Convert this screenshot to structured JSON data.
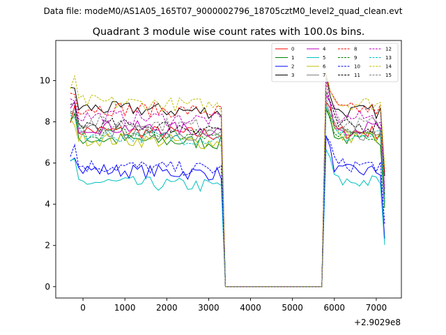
{
  "chart_data": {
    "type": "line",
    "suptitle": "Data file: modeM0/AS1A05_165T07_9000002796_18705cztM0_level2_quad_clean.evt",
    "title": "Quadrant 3 module wise count rates with 100.0s bins.",
    "xlabel": "",
    "ylabel": "",
    "x_offset_label": "+2.9029e8",
    "xlim": [
      -650,
      7600
    ],
    "ylim": [
      -0.55,
      11.95
    ],
    "xticks": [
      0,
      1000,
      2000,
      3000,
      4000,
      5000,
      6000,
      7000
    ],
    "yticks": [
      0,
      2,
      4,
      6,
      8,
      10
    ],
    "legend_position": "top-right",
    "segments": [
      {
        "start": -300,
        "bins": 37
      },
      {
        "start": 3400,
        "bins": 24
      },
      {
        "start": 5800,
        "bins": 15
      }
    ],
    "series": [
      {
        "name": "0",
        "color": "#ff0000",
        "dash": "solid",
        "pre": 7.6,
        "post": 7.5
      },
      {
        "name": "1",
        "color": "#008000",
        "dash": "solid",
        "pre": 7.2,
        "post": 7.2
      },
      {
        "name": "2",
        "color": "#0000ff",
        "dash": "solid",
        "pre": 5.7,
        "post": 5.6
      },
      {
        "name": "3",
        "color": "#000000",
        "dash": "solid",
        "pre": 8.7,
        "post": 8.5
      },
      {
        "name": "4",
        "color": "#bf00bf",
        "dash": "solid",
        "pre": 7.8,
        "post": 7.7
      },
      {
        "name": "5",
        "color": "#00bfbf",
        "dash": "solid",
        "pre": 5.1,
        "post": 5.1
      },
      {
        "name": "6",
        "color": "#bfbf00",
        "dash": "solid",
        "pre": 7.2,
        "post": 7.3
      },
      {
        "name": "7",
        "color": "#808080",
        "dash": "solid",
        "pre": 7.6,
        "post": 7.4
      },
      {
        "name": "8",
        "color": "#ff0000",
        "dash": "dashed",
        "pre": 8.7,
        "post": 8.6
      },
      {
        "name": "9",
        "color": "#008000",
        "dash": "dashed",
        "pre": 7.5,
        "post": 7.4
      },
      {
        "name": "10",
        "color": "#0000ff",
        "dash": "dashed",
        "pre": 5.9,
        "post": 5.9
      },
      {
        "name": "11",
        "color": "#000000",
        "dash": "dashed",
        "pre": 7.9,
        "post": 7.8
      },
      {
        "name": "12",
        "color": "#bf00bf",
        "dash": "dashed",
        "pre": 8.3,
        "post": 8.2
      },
      {
        "name": "13",
        "color": "#00bfbf",
        "dash": "dashed",
        "pre": 7.4,
        "post": 7.3
      },
      {
        "name": "14",
        "color": "#bfbf00",
        "dash": "dashed",
        "pre": 9.0,
        "post": 8.9
      },
      {
        "name": "15",
        "color": "#808080",
        "dash": "dashed",
        "pre": 8.0,
        "post": 7.9
      }
    ]
  }
}
